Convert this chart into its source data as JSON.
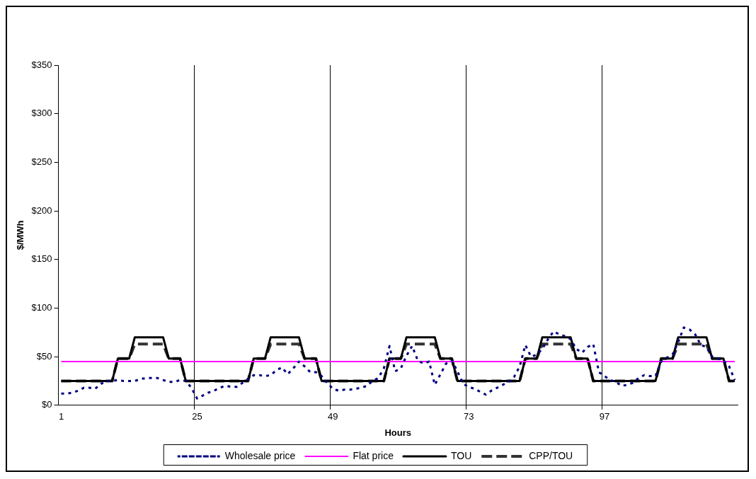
{
  "chart_data": {
    "type": "line",
    "xlabel": "Hours",
    "ylabel": "$/MWh",
    "categories": [
      "1",
      null,
      null,
      null,
      null,
      null,
      null,
      null,
      null,
      null,
      null,
      null,
      null,
      null,
      null,
      null,
      null,
      null,
      null,
      null,
      null,
      null,
      null,
      null,
      "25",
      null,
      null,
      null,
      null,
      null,
      null,
      null,
      null,
      null,
      null,
      null,
      null,
      null,
      null,
      null,
      null,
      null,
      null,
      null,
      null,
      null,
      null,
      null,
      "49",
      null,
      null,
      null,
      null,
      null,
      null,
      null,
      null,
      null,
      null,
      null,
      null,
      null,
      null,
      null,
      null,
      null,
      null,
      null,
      null,
      null,
      null,
      null,
      "73",
      null,
      null,
      null,
      null,
      null,
      null,
      null,
      null,
      null,
      null,
      null,
      null,
      null,
      null,
      null,
      null,
      null,
      null,
      null,
      null,
      null,
      null,
      null,
      "97",
      null,
      null,
      null,
      null,
      null,
      null,
      null,
      null,
      null,
      null,
      null,
      null,
      null,
      null,
      null,
      null,
      null,
      null,
      null,
      null,
      null,
      null,
      null
    ],
    "ylim": [
      0,
      350
    ],
    "yticks": [
      {
        "value": 0,
        "label": "$0"
      },
      {
        "value": 50,
        "label": "$50"
      },
      {
        "value": 100,
        "label": "$100"
      },
      {
        "value": 150,
        "label": "$150"
      },
      {
        "value": 200,
        "label": "$200"
      },
      {
        "value": 250,
        "label": "$250"
      },
      {
        "value": 300,
        "label": "$300"
      },
      {
        "value": 350,
        "label": "$350"
      }
    ],
    "grid": "x",
    "legend": "bottom",
    "marker": "none",
    "series": [
      {
        "name": "Wholesale price",
        "color": "#000080",
        "line_style": "dotted",
        "values": [
          12,
          12,
          13,
          15,
          18,
          18,
          17,
          22,
          25,
          25,
          26,
          25,
          25,
          25,
          27,
          28,
          28,
          28,
          26,
          24,
          24,
          26,
          25,
          18,
          7,
          10,
          13,
          15,
          18,
          20,
          19,
          19,
          23,
          27,
          31,
          31,
          30,
          31,
          36,
          39,
          32,
          38,
          45,
          40,
          34,
          34,
          30,
          23,
          17,
          15,
          16,
          16,
          17,
          18,
          20,
          25,
          28,
          38,
          61,
          35,
          38,
          51,
          61,
          46,
          43,
          45,
          21,
          32,
          43,
          46,
          35,
          22,
          19,
          17,
          14,
          11,
          15,
          18,
          21,
          24,
          29,
          40,
          62,
          50,
          52,
          58,
          68,
          76,
          73,
          71,
          68,
          58,
          54,
          60,
          63,
          34,
          30,
          26,
          24,
          20,
          21,
          23,
          28,
          31,
          30,
          30,
          45,
          49,
          52,
          65,
          80,
          78,
          73,
          62,
          60,
          50,
          48,
          46,
          40,
          26
        ]
      },
      {
        "name": "Flat price",
        "color": "#ff00ff",
        "line_style": "solid",
        "values": [
          45,
          45,
          45,
          45,
          45,
          45,
          45,
          45,
          45,
          45,
          45,
          45,
          45,
          45,
          45,
          45,
          45,
          45,
          45,
          45,
          45,
          45,
          45,
          45,
          45,
          45,
          45,
          45,
          45,
          45,
          45,
          45,
          45,
          45,
          45,
          45,
          45,
          45,
          45,
          45,
          45,
          45,
          45,
          45,
          45,
          45,
          45,
          45,
          45,
          45,
          45,
          45,
          45,
          45,
          45,
          45,
          45,
          45,
          45,
          45,
          45,
          45,
          45,
          45,
          45,
          45,
          45,
          45,
          45,
          45,
          45,
          45,
          45,
          45,
          45,
          45,
          45,
          45,
          45,
          45,
          45,
          45,
          45,
          45,
          45,
          45,
          45,
          45,
          45,
          45,
          45,
          45,
          45,
          45,
          45,
          45,
          45,
          45,
          45,
          45,
          45,
          45,
          45,
          45,
          45,
          45,
          45,
          45,
          45,
          45,
          45,
          45,
          45,
          45,
          45,
          45,
          45,
          45,
          45,
          45
        ]
      },
      {
        "name": "TOU",
        "color": "#000000",
        "line_style": "solid",
        "values": [
          25,
          25,
          25,
          25,
          25,
          25,
          25,
          25,
          25,
          25,
          48,
          48,
          48,
          70,
          70,
          70,
          70,
          70,
          70,
          48,
          48,
          48,
          25,
          25,
          25,
          25,
          25,
          25,
          25,
          25,
          25,
          25,
          25,
          25,
          48,
          48,
          48,
          70,
          70,
          70,
          70,
          70,
          70,
          48,
          48,
          48,
          25,
          25,
          25,
          25,
          25,
          25,
          25,
          25,
          25,
          25,
          25,
          25,
          48,
          48,
          48,
          70,
          70,
          70,
          70,
          70,
          70,
          48,
          48,
          48,
          25,
          25,
          25,
          25,
          25,
          25,
          25,
          25,
          25,
          25,
          25,
          25,
          48,
          48,
          48,
          70,
          70,
          70,
          70,
          70,
          70,
          48,
          48,
          48,
          25,
          25,
          25,
          25,
          25,
          25,
          25,
          25,
          25,
          25,
          25,
          25,
          48,
          48,
          48,
          70,
          70,
          70,
          70,
          70,
          70,
          48,
          48,
          48,
          25,
          25
        ]
      },
      {
        "name": "CPP/TOU",
        "color": "#333333",
        "line_style": "dashed",
        "values": [
          25,
          25,
          25,
          25,
          25,
          25,
          25,
          25,
          25,
          25,
          48,
          48,
          48,
          63,
          63,
          63,
          63,
          63,
          63,
          48,
          48,
          48,
          25,
          25,
          25,
          25,
          25,
          25,
          25,
          25,
          25,
          25,
          25,
          25,
          48,
          48,
          48,
          63,
          63,
          63,
          63,
          63,
          63,
          48,
          48,
          48,
          25,
          25,
          25,
          25,
          25,
          25,
          25,
          25,
          25,
          25,
          25,
          25,
          48,
          48,
          48,
          63,
          63,
          63,
          63,
          63,
          63,
          48,
          48,
          48,
          25,
          25,
          25,
          25,
          25,
          25,
          25,
          25,
          25,
          25,
          25,
          25,
          48,
          48,
          48,
          63,
          63,
          63,
          63,
          63,
          63,
          48,
          48,
          48,
          25,
          25,
          25,
          25,
          25,
          25,
          25,
          25,
          25,
          25,
          25,
          25,
          48,
          48,
          48,
          63,
          63,
          63,
          63,
          63,
          63,
          48,
          48,
          48,
          25,
          25
        ]
      }
    ]
  }
}
